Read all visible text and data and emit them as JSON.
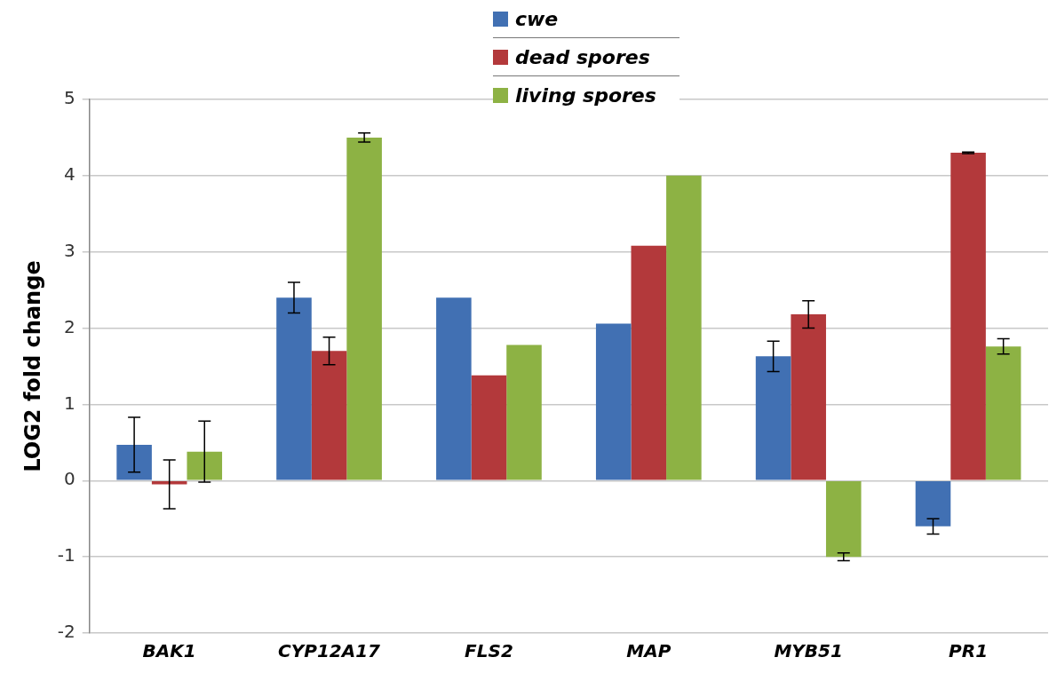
{
  "chart_data": {
    "type": "bar",
    "ylabel": "LOG2 fold change",
    "categories": [
      "BAK1",
      "CYP12A17",
      "FLS2",
      "MAP",
      "MYB51",
      "PR1"
    ],
    "series": [
      {
        "name": "cwe",
        "color": "#4170b3",
        "values": [
          0.47,
          2.4,
          2.4,
          2.06,
          1.63,
          -0.6
        ],
        "errors": [
          0.36,
          0.2,
          null,
          null,
          0.2,
          0.1
        ]
      },
      {
        "name": "dead spores",
        "color": "#b3393b",
        "values": [
          -0.05,
          1.7,
          1.38,
          3.08,
          2.18,
          4.3
        ],
        "errors": [
          0.32,
          0.18,
          null,
          null,
          0.18,
          0.01
        ]
      },
      {
        "name": "living spores",
        "color": "#8db244",
        "values": [
          0.38,
          4.5,
          1.78,
          4.0,
          -1.0,
          1.76
        ],
        "errors": [
          0.4,
          0.06,
          null,
          null,
          0.05,
          0.1
        ]
      }
    ],
    "ylim": [
      -2,
      5
    ],
    "yticks": [
      -2,
      -1,
      0,
      1,
      2,
      3,
      4,
      5
    ],
    "grid": "y",
    "legend": "top"
  }
}
